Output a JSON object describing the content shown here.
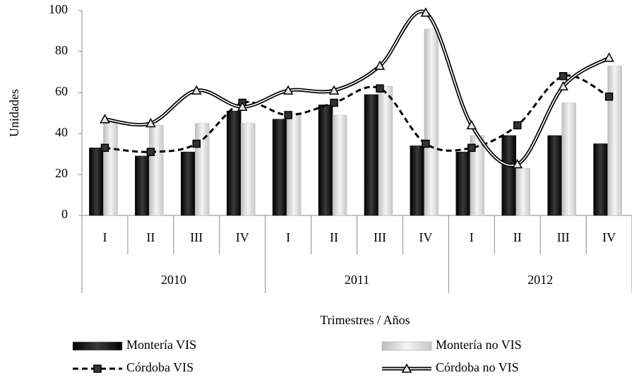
{
  "chart_data": {
    "type": "bar-line",
    "y_label": "Unidades",
    "x_label": "Trimestres / Años",
    "categories": [
      "I",
      "II",
      "III",
      "IV",
      "I",
      "II",
      "III",
      "IV",
      "I",
      "II",
      "III",
      "IV"
    ],
    "groups": [
      "2010",
      "2011",
      "2012"
    ],
    "ylim": [
      0,
      100
    ],
    "yticks": [
      0,
      20,
      40,
      60,
      80,
      100
    ],
    "series": [
      {
        "name": "Montería VIS",
        "type": "bar",
        "color": "#111111",
        "values": [
          33,
          29,
          31,
          51,
          47,
          54,
          59,
          34,
          31,
          39,
          39,
          35
        ]
      },
      {
        "name": "Montería no VIS",
        "type": "bar",
        "color": "#d9d9d9",
        "values": [
          46,
          44,
          45,
          45,
          50,
          49,
          63,
          91,
          39,
          23,
          55,
          73
        ]
      },
      {
        "name": "Córdoba VIS",
        "type": "line",
        "color": "#000000",
        "style": "dashed",
        "marker": "square",
        "values": [
          33,
          31,
          35,
          55,
          49,
          55,
          62,
          35,
          33,
          44,
          68,
          58
        ]
      },
      {
        "name": "Córdoba no VIS",
        "type": "line",
        "color": "#000000",
        "style": "double",
        "marker": "triangle",
        "values": [
          47,
          45,
          61,
          53,
          61,
          61,
          73,
          99,
          44,
          25,
          63,
          77
        ]
      }
    ]
  }
}
